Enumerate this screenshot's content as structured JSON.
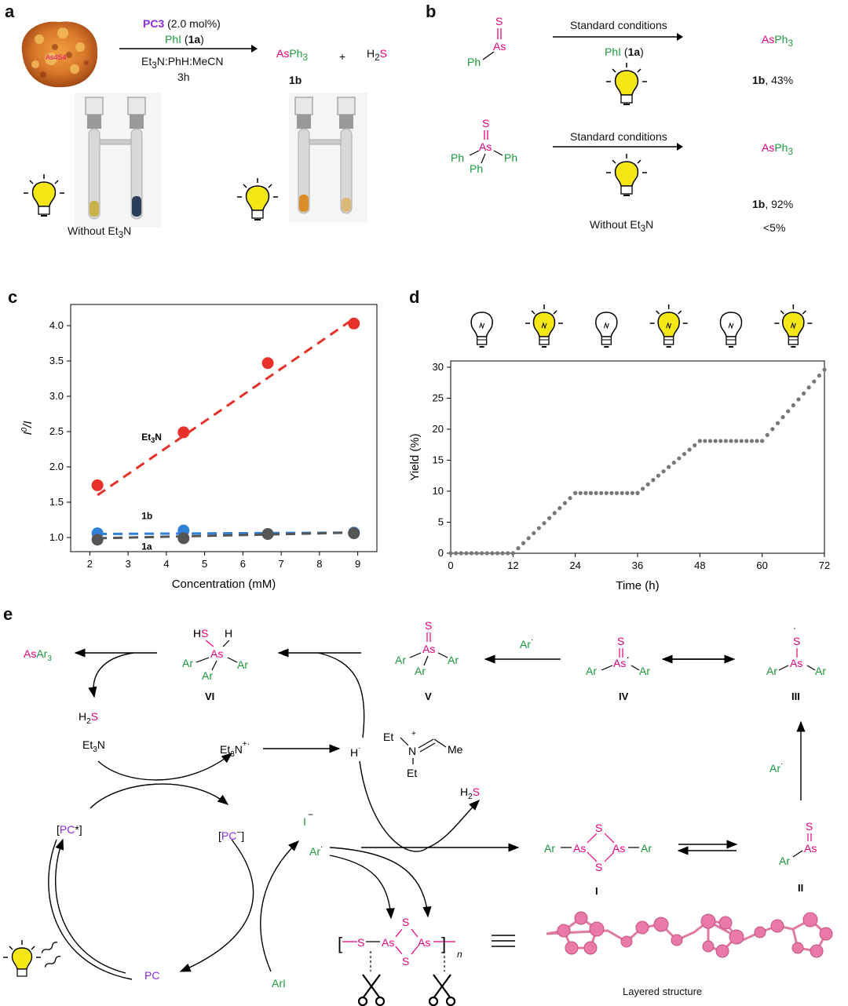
{
  "panels": {
    "a": "a",
    "b": "b",
    "c": "c",
    "d": "d",
    "e": "e"
  },
  "colors": {
    "pink": "#e6007e",
    "green": "#1a9a3c",
    "purple": "#8a2be2",
    "red": "#e8302a",
    "blue": "#2f7fd6",
    "gray": "#555555",
    "dots": "#777777"
  },
  "panel_a": {
    "catalyst": "PC3",
    "catalyst_loading": "(2.0 mol%)",
    "reagent": "PhI",
    "reagent_label": "1a",
    "solvent": "Et3N:PhH:MeCN",
    "time": "3h",
    "product_as": "As",
    "product_ph": "Ph",
    "product_sub": "3",
    "product_label": "1b",
    "plus": "+",
    "h2s_h": "H",
    "h2s_2": "2",
    "h2s_s": "S",
    "without_caption": "Without Et3N"
  },
  "panel_b": {
    "row1_conditions": "Standard conditions",
    "row1_reagent": "PhI",
    "row1_reagent_label": "1a",
    "row1_product": "AsPh3",
    "row1_yield_label": "1b",
    "row1_yield": ", 43%",
    "row2_conditions": "Standard conditions",
    "row2_product": "AsPh3",
    "row2_yield_label": "1b",
    "row2_yield": ", 92%",
    "without_text": "Without Et3N",
    "without_yield": "<5%",
    "ph": "Ph",
    "as": "As",
    "s": "S"
  },
  "chart_data": [
    {
      "type": "scatter",
      "panel": "c",
      "xlabel": "Concentration (mM)",
      "ylabel": "I0/I",
      "xlim": [
        1.5,
        9.5
      ],
      "ylim": [
        0.8,
        4.3
      ],
      "xticks": [
        2,
        3,
        4,
        5,
        6,
        7,
        8,
        9
      ],
      "yticks": [
        1.0,
        1.5,
        2.0,
        2.5,
        3.0,
        3.5,
        4.0
      ],
      "series": [
        {
          "name": "Et3N",
          "x": [
            2.2,
            4.45,
            6.65,
            8.9
          ],
          "y": [
            1.74,
            2.49,
            3.47,
            4.03
          ],
          "fit": [
            1.6,
            4.1
          ],
          "color": "#e8302a"
        },
        {
          "name": "1b",
          "x": [
            2.2,
            4.45,
            6.65,
            8.9
          ],
          "y": [
            1.06,
            1.1,
            1.05,
            1.07
          ],
          "fit": [
            1.05,
            1.07
          ],
          "color": "#2f7fd6"
        },
        {
          "name": "1a",
          "x": [
            2.2,
            4.45,
            6.65,
            8.9
          ],
          "y": [
            0.97,
            0.99,
            1.05,
            1.06
          ],
          "fit": [
            0.99,
            1.07
          ],
          "color": "#555555"
        }
      ]
    },
    {
      "type": "scatter",
      "panel": "d",
      "xlabel": "Time (h)",
      "ylabel": "Yield (%)",
      "xlim": [
        0,
        72
      ],
      "ylim": [
        0,
        31
      ],
      "xticks": [
        0,
        12,
        24,
        36,
        48,
        60,
        72
      ],
      "yticks": [
        0,
        5,
        10,
        15,
        20,
        25,
        30
      ],
      "light_sequence": [
        "off",
        "on",
        "off",
        "on",
        "off",
        "on"
      ],
      "segments": [
        {
          "from": 0,
          "to": 12,
          "y0": 0,
          "y1": 0
        },
        {
          "from": 12,
          "to": 24,
          "y0": 0,
          "y1": 9.7
        },
        {
          "from": 24,
          "to": 36,
          "y0": 9.7,
          "y1": 9.7
        },
        {
          "from": 36,
          "to": 48,
          "y0": 9.7,
          "y1": 18.1
        },
        {
          "from": 48,
          "to": 60,
          "y0": 18.1,
          "y1": 18.1
        },
        {
          "from": 60,
          "to": 72,
          "y0": 18.1,
          "y1": 29.6
        }
      ],
      "step_h": 1.0
    }
  ],
  "panel_e": {
    "asar3": "AsAr3",
    "h2s": "H2S",
    "et3n": "Et3N",
    "et3n_rad": "Et3N+•",
    "h_rad": "H•",
    "imine_et": "Et",
    "imine_n": "N",
    "imine_me": "Me",
    "pc_star": "[PC*]",
    "pc_minus": "[PC−]",
    "pc": "PC",
    "ari": "ArI",
    "i_minus": "I",
    "ar_rad": "Ar•",
    "h2s_2": "H2S",
    "labels": {
      "VI": "VI",
      "V": "V",
      "IV": "IV",
      "III": "III",
      "I": "I",
      "II": "II"
    },
    "ar": "Ar",
    "as": "As",
    "s": "S",
    "hs": "HS",
    "h": "H",
    "n": "n",
    "layered": "Layered structure"
  }
}
